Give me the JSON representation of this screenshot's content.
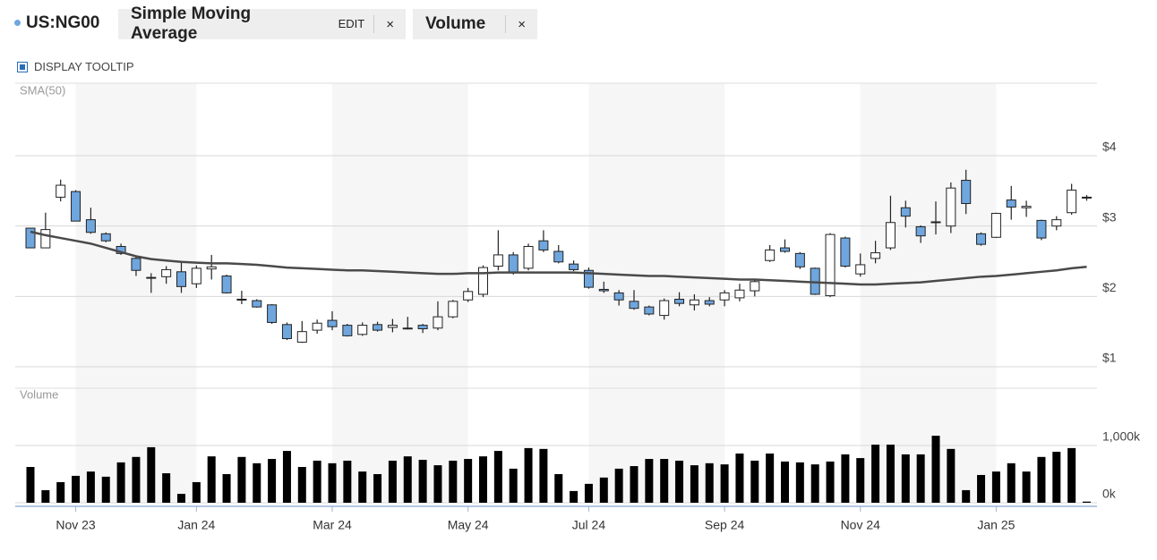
{
  "header": {
    "symbol": "US:NG00",
    "studies": [
      {
        "name": "Simple Moving Average",
        "edit": "EDIT",
        "close": "×"
      },
      {
        "name": "Volume",
        "close": "×"
      }
    ],
    "tooltip_toggle": "DISPLAY TOOLTIP"
  },
  "chart_data": [
    {
      "type": "candlestick",
      "label": "SMA(50)",
      "categories": [
        null,
        null,
        null,
        "Nov 23",
        null,
        null,
        null,
        null,
        null,
        null,
        null,
        "Jan 24",
        null,
        null,
        null,
        null,
        null,
        null,
        null,
        null,
        "Mar 24",
        null,
        null,
        null,
        null,
        null,
        null,
        null,
        null,
        "May 24",
        null,
        null,
        null,
        null,
        null,
        null,
        null,
        "Jul 24",
        null,
        null,
        null,
        null,
        null,
        null,
        null,
        null,
        "Sep 24",
        null,
        null,
        null,
        null,
        null,
        null,
        null,
        null,
        "Nov 24",
        null,
        null,
        null,
        null,
        null,
        null,
        null,
        null,
        "Jan 25",
        null,
        null,
        null,
        null,
        null,
        null
      ],
      "open": [
        2.97,
        2.69,
        3.41,
        3.49,
        3.09,
        2.89,
        2.71,
        2.54,
        2.27,
        2.28,
        2.35,
        2.18,
        2.39,
        2.29,
        1.96,
        1.94,
        1.88,
        1.6,
        1.35,
        1.52,
        1.66,
        1.59,
        1.46,
        1.6,
        1.56,
        1.55,
        1.59,
        1.55,
        1.71,
        1.95,
        2.03,
        2.43,
        2.59,
        2.4,
        2.79,
        2.64,
        2.46,
        2.37,
        2.1,
        2.05,
        1.93,
        1.85,
        1.73,
        1.96,
        1.88,
        1.94,
        1.95,
        1.98,
        2.08,
        2.51,
        2.69,
        2.61,
        2.4,
        2.01,
        2.83,
        2.32,
        2.54,
        2.69,
        3.26,
        2.99,
        3.06,
        3.0,
        3.65,
        2.89,
        2.84,
        3.37,
        3.26,
        3.08,
        3.0,
        3.19,
        3.41
      ],
      "high": [
        2.97,
        3.19,
        3.66,
        3.51,
        3.26,
        2.91,
        2.75,
        2.57,
        2.33,
        2.43,
        2.5,
        2.44,
        2.59,
        2.31,
        2.08,
        1.96,
        1.89,
        1.63,
        1.65,
        1.67,
        1.79,
        1.61,
        1.63,
        1.64,
        1.68,
        1.71,
        1.61,
        1.93,
        1.95,
        2.12,
        2.44,
        2.94,
        2.63,
        2.75,
        2.94,
        2.73,
        2.51,
        2.41,
        2.21,
        2.09,
        2.09,
        1.87,
        1.97,
        2.06,
        2.03,
        1.99,
        2.09,
        2.18,
        2.25,
        2.73,
        2.81,
        2.63,
        2.41,
        2.9,
        2.85,
        2.61,
        2.79,
        3.43,
        3.36,
        3.01,
        3.35,
        3.62,
        3.8,
        2.91,
        3.19,
        3.57,
        3.36,
        3.09,
        3.14,
        3.6,
        3.44
      ],
      "low": [
        2.69,
        2.69,
        3.35,
        3.07,
        2.89,
        2.77,
        2.59,
        2.29,
        2.05,
        2.18,
        2.05,
        2.12,
        2.24,
        2.04,
        1.89,
        1.84,
        1.61,
        1.38,
        1.34,
        1.47,
        1.52,
        1.43,
        1.44,
        1.5,
        1.49,
        1.53,
        1.48,
        1.52,
        1.69,
        1.92,
        1.99,
        2.37,
        2.31,
        2.37,
        2.63,
        2.47,
        2.36,
        2.11,
        2.05,
        1.87,
        1.81,
        1.73,
        1.67,
        1.86,
        1.8,
        1.86,
        1.86,
        1.93,
        2.0,
        2.49,
        2.62,
        2.39,
        2.02,
        1.99,
        2.41,
        2.28,
        2.47,
        2.66,
        2.98,
        2.76,
        2.88,
        2.9,
        3.17,
        2.72,
        2.83,
        3.09,
        3.13,
        2.8,
        2.94,
        3.16,
        3.36
      ],
      "close": [
        2.69,
        2.95,
        3.58,
        3.07,
        2.91,
        2.79,
        2.61,
        2.37,
        2.26,
        2.38,
        2.14,
        2.4,
        2.42,
        2.05,
        1.95,
        1.85,
        1.63,
        1.4,
        1.5,
        1.62,
        1.57,
        1.44,
        1.59,
        1.52,
        1.59,
        1.55,
        1.54,
        1.71,
        1.93,
        2.07,
        2.41,
        2.59,
        2.34,
        2.71,
        2.66,
        2.49,
        2.38,
        2.13,
        2.08,
        1.95,
        1.83,
        1.75,
        1.94,
        1.9,
        1.95,
        1.89,
        2.05,
        2.09,
        2.21,
        2.66,
        2.64,
        2.42,
        2.03,
        2.88,
        2.43,
        2.45,
        2.62,
        3.05,
        3.14,
        2.86,
        3.05,
        3.54,
        3.32,
        2.74,
        3.18,
        3.27,
        3.28,
        2.83,
        3.09,
        3.51,
        3.41
      ],
      "up_color": "#ffffff",
      "down_color": "#6fa6de",
      "series": [
        {
          "type": "line",
          "color": "#4a4a4a",
          "values": [
            2.92,
            2.87,
            2.83,
            2.79,
            2.75,
            2.69,
            2.63,
            2.57,
            2.53,
            2.51,
            2.49,
            2.48,
            2.47,
            2.47,
            2.46,
            2.45,
            2.43,
            2.41,
            2.4,
            2.39,
            2.38,
            2.37,
            2.37,
            2.36,
            2.35,
            2.34,
            2.33,
            2.32,
            2.32,
            2.33,
            2.33,
            2.34,
            2.34,
            2.34,
            2.34,
            2.34,
            2.34,
            2.33,
            2.32,
            2.31,
            2.3,
            2.29,
            2.29,
            2.28,
            2.27,
            2.26,
            2.25,
            2.24,
            2.24,
            2.23,
            2.22,
            2.21,
            2.2,
            2.19,
            2.18,
            2.17,
            2.17,
            2.18,
            2.19,
            2.2,
            2.22,
            2.24,
            2.26,
            2.28,
            2.29,
            2.31,
            2.33,
            2.35,
            2.37,
            2.4,
            2.42
          ]
        }
      ],
      "ylim": [
        1,
        5.03
      ],
      "yticks": [
        {
          "value": 1,
          "label": "$1"
        },
        {
          "value": 2,
          "label": "$2"
        },
        {
          "value": 3,
          "label": "$3"
        },
        {
          "value": 4,
          "label": "$4"
        }
      ],
      "grid": true
    },
    {
      "type": "bar",
      "label": "Volume",
      "categories": [
        null,
        null,
        null,
        "Nov 23",
        null,
        null,
        null,
        null,
        null,
        null,
        null,
        "Jan 24",
        null,
        null,
        null,
        null,
        null,
        null,
        null,
        null,
        "Mar 24",
        null,
        null,
        null,
        null,
        null,
        null,
        null,
        null,
        "May 24",
        null,
        null,
        null,
        null,
        null,
        null,
        null,
        "Jul 24",
        null,
        null,
        null,
        null,
        null,
        null,
        null,
        null,
        "Sep 24",
        null,
        null,
        null,
        null,
        null,
        null,
        null,
        null,
        "Nov 24",
        null,
        null,
        null,
        null,
        null,
        null,
        null,
        null,
        "Jan 25",
        null,
        null,
        null,
        null,
        null,
        null
      ],
      "values": [
        625,
        220,
        360,
        470,
        545,
        455,
        705,
        800,
        970,
        515,
        155,
        360,
        810,
        500,
        800,
        690,
        765,
        905,
        625,
        735,
        690,
        735,
        545,
        500,
        735,
        810,
        750,
        655,
        735,
        765,
        810,
        905,
        595,
        955,
        940,
        500,
        205,
        330,
        440,
        595,
        640,
        765,
        765,
        735,
        655,
        690,
        670,
        860,
        735,
        860,
        720,
        705,
        670,
        720,
        845,
        780,
        1015,
        1015,
        845,
        845,
        1170,
        940,
        220,
        485,
        545,
        690,
        545,
        800,
        890,
        955,
        20
      ],
      "color": "#000000",
      "ylim": [
        0,
        2000
      ],
      "yticks": [
        {
          "value": 0,
          "label": "0k"
        },
        {
          "value": 1000,
          "label": "1,000k"
        }
      ],
      "grid": true
    }
  ]
}
